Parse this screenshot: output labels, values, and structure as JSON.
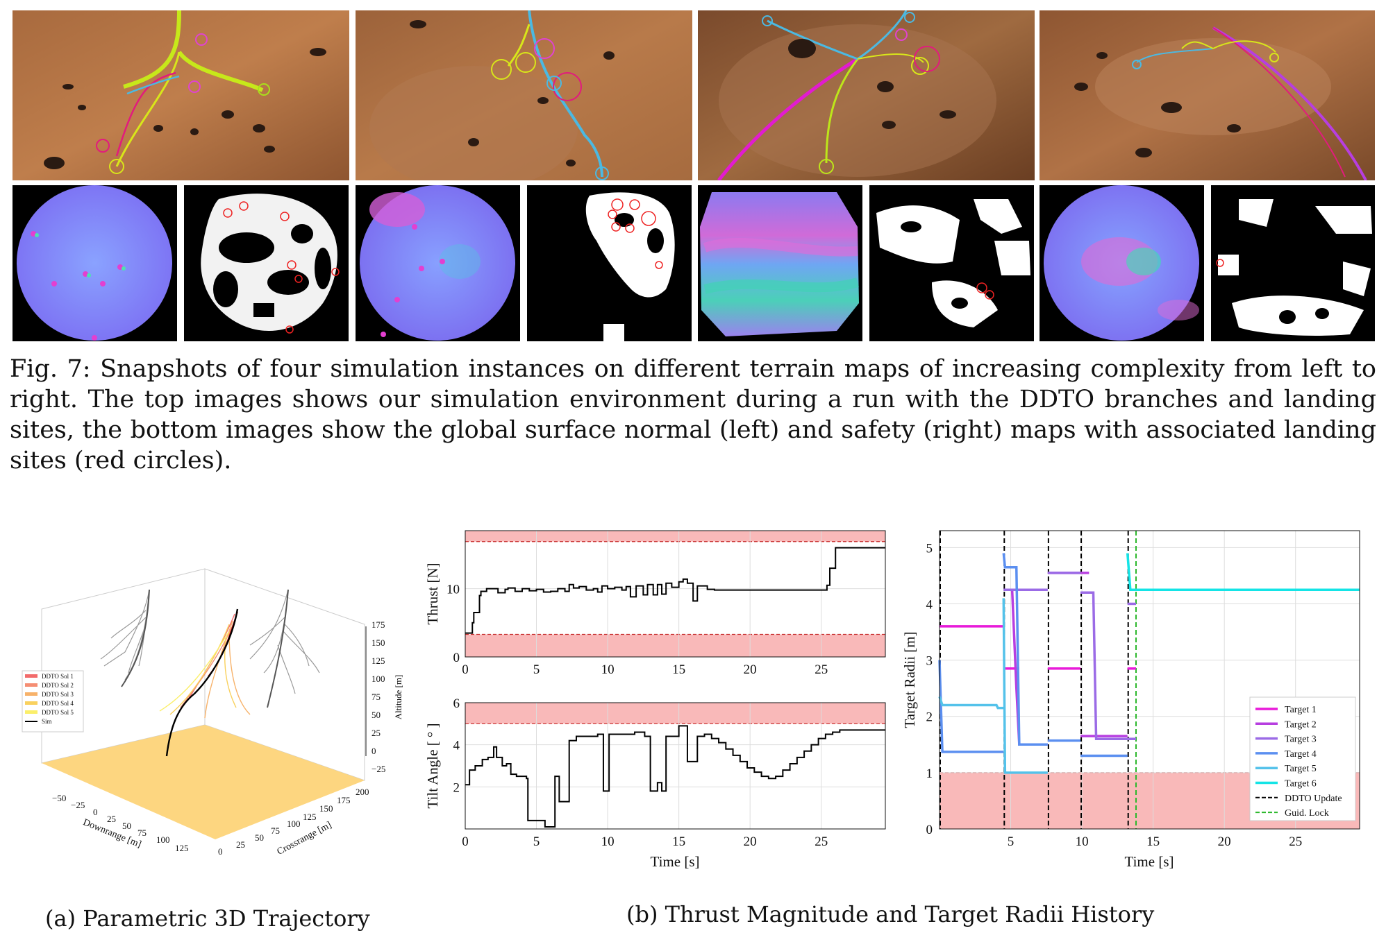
{
  "figure7": {
    "caption": "Fig. 7: Snapshots of four simulation instances on different terrain maps of increasing complexity from left to right. The top images shows our simulation environment during a run with the DDTO branches and landing sites, the bottom images show the global surface normal (left) and safety (right) maps with associated landing sites (red circles)."
  },
  "subfigures": {
    "a": "(a) Parametric 3D Trajectory",
    "b": "(b) Thrust Magnitude and Target Radii History"
  },
  "chart_data": [
    {
      "type": "line",
      "panel": "3d-trajectory",
      "xlabel": "Downrange [m]",
      "ylabel": "Crossrange [m]",
      "zlabel": "Altitude [m]",
      "x_ticks": [
        "−50",
        "−25",
        "0",
        "25",
        "50",
        "75",
        "100",
        "125"
      ],
      "y_ticks": [
        "0",
        "25",
        "50",
        "75",
        "100",
        "125",
        "150",
        "175",
        "200"
      ],
      "z_ticks": [
        "−25",
        "0",
        "25",
        "50",
        "75",
        "100",
        "125",
        "150",
        "175"
      ],
      "legend": [
        "DDTO Sol 1",
        "DDTO Sol 2",
        "DDTO Sol 3",
        "DDTO Sol 4",
        "DDTO Sol 5",
        "Sim"
      ],
      "colors": {
        "sol1": "#f26b6b",
        "sol2": "#f58e73",
        "sol3": "#f7b26a",
        "sol4": "#f9d15e",
        "sol5": "#fbef6a",
        "sim": "#000000",
        "floor": "#fdd680"
      }
    },
    {
      "type": "line",
      "panel": "thrust",
      "xlabel": "",
      "ylabel": "Thrust [N]",
      "xlim": [
        0,
        29.5
      ],
      "ylim": [
        0,
        18.5
      ],
      "x_ticks": [
        0,
        5,
        10,
        15,
        20,
        25
      ],
      "y_ticks": [
        0,
        10
      ],
      "limits": {
        "upper": 16.9,
        "lower": 3.3
      },
      "series": [
        {
          "values_x": [
            0,
            0.5,
            0.5,
            0.6,
            0.7,
            0.9,
            1.0,
            1.1,
            1.3,
            1.5,
            2.0,
            2.3,
            2.8,
            3.0,
            3.5,
            4.0,
            4.5,
            5.0,
            5.5,
            6.0,
            6.5,
            7.0,
            7.3,
            7.6,
            8.0,
            8.5,
            9.0,
            9.3,
            9.6,
            10.0,
            10.5,
            11.0,
            11.3,
            11.6,
            12.0,
            12.5,
            12.8,
            13.2,
            13.5,
            13.8,
            14.1,
            14.5,
            15.0,
            15.3,
            15.6,
            16.0,
            16.3,
            16.6,
            17.0,
            17.5,
            18.0,
            19,
            20,
            21,
            22,
            23,
            24,
            25,
            25.4,
            25.6,
            25.8,
            26.0,
            29.5
          ],
          "values_y": [
            3.5,
            3.5,
            5.0,
            6.5,
            6.5,
            6.5,
            9.0,
            9.6,
            9.6,
            10.0,
            10.0,
            9.4,
            9.9,
            10.1,
            9.6,
            10.0,
            9.7,
            9.9,
            9.5,
            9.6,
            10.0,
            9.6,
            10.6,
            10.1,
            10.3,
            9.8,
            10.0,
            9.5,
            10.4,
            10.0,
            10.2,
            9.8,
            10.3,
            8.8,
            10.4,
            9.1,
            10.6,
            9.1,
            10.6,
            9.2,
            10.8,
            10.2,
            11.0,
            11.4,
            10.8,
            8.2,
            10.4,
            10.4,
            9.9,
            9.8,
            9.8,
            9.8,
            9.8,
            9.8,
            9.8,
            9.8,
            9.8,
            9.8,
            10.5,
            13.0,
            13.0,
            16.0,
            16.0
          ]
        }
      ]
    },
    {
      "type": "line",
      "panel": "tilt",
      "xlabel": "Time [s]",
      "ylabel": "Tilt Angle [ ° ]",
      "xlim": [
        0,
        29.5
      ],
      "ylim": [
        0,
        6
      ],
      "x_ticks": [
        0,
        5,
        10,
        15,
        20,
        25
      ],
      "y_ticks": [
        2,
        4,
        6
      ],
      "limits": {
        "upper": 5.0
      },
      "series": [
        {
          "values_x": [
            0,
            0.3,
            0.3,
            0.7,
            0.7,
            1.2,
            1.2,
            1.6,
            2.0,
            2.2,
            2.6,
            2.9,
            3.2,
            3.6,
            4.0,
            4.3,
            4.4,
            5.0,
            5.6,
            5.6,
            6.3,
            6.3,
            6.6,
            6.6,
            7.0,
            7.3,
            7.3,
            7.8,
            8.3,
            8.8,
            9.3,
            9.7,
            9.7,
            10.1,
            10.6,
            11.3,
            11.9,
            12.6,
            13.0,
            13.0,
            13.5,
            13.5,
            13.8,
            13.8,
            14.1,
            14.1,
            14.5,
            15.0,
            15.0,
            15.6,
            15.6,
            16.3,
            16.3,
            16.8,
            17.3,
            17.8,
            18.3,
            18.8,
            19.3,
            19.8,
            20.3,
            20.8,
            21.3,
            21.8,
            22.3,
            22.8,
            23.3,
            23.8,
            24.3,
            24.8,
            25.3,
            25.8,
            26.3,
            29.5
          ],
          "values_y": [
            2.1,
            2.1,
            2.8,
            2.8,
            3.0,
            3.0,
            3.3,
            3.4,
            3.9,
            3.4,
            3.0,
            3.1,
            2.6,
            2.5,
            2.5,
            2.4,
            0.4,
            0.4,
            0.4,
            0.1,
            0.1,
            2.5,
            2.5,
            1.3,
            1.3,
            1.3,
            4.2,
            4.4,
            4.4,
            4.4,
            4.5,
            4.5,
            1.8,
            4.5,
            4.5,
            4.5,
            4.6,
            4.4,
            4.4,
            1.8,
            1.8,
            2.2,
            2.2,
            1.8,
            1.8,
            4.4,
            4.4,
            4.4,
            4.9,
            4.9,
            3.2,
            3.2,
            4.4,
            4.5,
            4.3,
            4.1,
            3.8,
            3.5,
            3.2,
            2.9,
            2.7,
            2.5,
            2.4,
            2.5,
            2.8,
            3.1,
            3.4,
            3.7,
            4.0,
            4.3,
            4.5,
            4.6,
            4.7,
            4.7
          ]
        }
      ]
    },
    {
      "type": "line",
      "panel": "target-radii",
      "xlabel": "Time [s]",
      "ylabel": "Target Radii [m]",
      "xlim": [
        0,
        29.5
      ],
      "ylim": [
        0,
        5.3
      ],
      "x_ticks": [
        5,
        10,
        15,
        20,
        25
      ],
      "y_ticks": [
        0,
        1,
        2,
        3,
        4,
        5
      ],
      "min_radius": 1.0,
      "ddto_updates": [
        0,
        4.5,
        7.6,
        9.9,
        13.2
      ],
      "guid_lock": 13.8,
      "legend": [
        "Target 1",
        "Target 2",
        "Target 3",
        "Target 4",
        "Target 5",
        "Target 6",
        "DDTO Update",
        "Guid. Lock"
      ],
      "series": [
        {
          "name": "Target 1",
          "color": "#e81ad9",
          "segments": [
            [
              [
                0,
                3.6
              ],
              [
                4.5,
                3.6
              ]
            ],
            [
              [
                4.5,
                2.85
              ],
              [
                5.6,
                2.85
              ]
            ],
            [
              [
                7.6,
                2.85
              ],
              [
                9.9,
                2.85
              ]
            ],
            [
              [
                13.2,
                2.85
              ],
              [
                13.8,
                2.85
              ]
            ]
          ]
        },
        {
          "name": "Target 2",
          "color": "#b73ee0",
          "segments": [
            [
              [
                4.5,
                4.25
              ],
              [
                5.1,
                4.25
              ],
              [
                5.4,
                2.5
              ],
              [
                5.6,
                1.5
              ],
              [
                7.6,
                1.5
              ]
            ],
            [
              [
                7.6,
                4.55
              ],
              [
                10.5,
                4.55
              ]
            ],
            [
              [
                10.5,
                4.2
              ],
              [
                10.8,
                4.2
              ]
            ],
            [
              [
                9.9,
                1.65
              ],
              [
                13.2,
                1.65
              ]
            ],
            [
              [
                13.2,
                1.6
              ],
              [
                13.8,
                1.6
              ]
            ]
          ]
        },
        {
          "name": "Target 3",
          "color": "#9b6be6",
          "segments": [
            [
              [
                4.5,
                4.25
              ],
              [
                7.6,
                4.25
              ]
            ],
            [
              [
                7.6,
                4.55
              ],
              [
                9.9,
                4.55
              ]
            ],
            [
              [
                9.9,
                4.2
              ],
              [
                10.8,
                4.2
              ],
              [
                11.0,
                1.6
              ],
              [
                13.8,
                1.6
              ]
            ],
            [
              [
                13.2,
                4.0
              ],
              [
                13.8,
                4.0
              ]
            ]
          ]
        },
        {
          "name": "Target 4",
          "color": "#5b8ff0",
          "segments": [
            [
              [
                0,
                3.0
              ],
              [
                0.2,
                1.37
              ],
              [
                4.5,
                1.37
              ]
            ],
            [
              [
                4.5,
                4.9
              ],
              [
                4.6,
                4.65
              ],
              [
                5.4,
                4.65
              ],
              [
                5.6,
                1.5
              ],
              [
                7.6,
                1.5
              ]
            ],
            [
              [
                7.6,
                1.57
              ],
              [
                9.9,
                1.57
              ]
            ],
            [
              [
                9.9,
                1.3
              ],
              [
                13.2,
                1.3
              ]
            ]
          ]
        },
        {
          "name": "Target 5",
          "color": "#54c2ea",
          "segments": [
            [
              [
                0,
                2.35
              ],
              [
                0.2,
                2.2
              ],
              [
                4.0,
                2.2
              ],
              [
                4.1,
                2.15
              ],
              [
                4.5,
                2.15
              ]
            ],
            [
              [
                4.5,
                4.1
              ],
              [
                4.6,
                1.0
              ],
              [
                7.6,
                1.0
              ]
            ]
          ]
        },
        {
          "name": "Target 6",
          "color": "#14e4e6",
          "segments": [
            [
              [
                13.2,
                4.9
              ],
              [
                13.4,
                4.25
              ],
              [
                29.5,
                4.25
              ]
            ]
          ]
        }
      ]
    }
  ]
}
